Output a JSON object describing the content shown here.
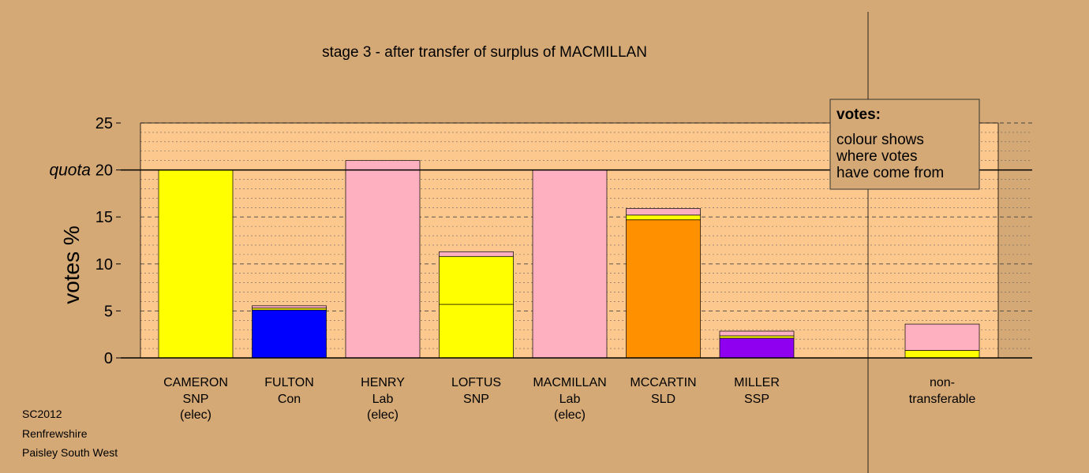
{
  "chart_data": {
    "type": "bar",
    "title": "stage 3 - after transfer of surplus of MACMILLAN",
    "ylabel": "votes %",
    "ylim": [
      0,
      25
    ],
    "yticks": [
      0,
      5,
      10,
      15,
      20,
      25
    ],
    "quota": {
      "value": 20,
      "label": "quota"
    },
    "grid": "dashed",
    "candidates": [
      {
        "name": "CAMERON",
        "party": "SNP",
        "status": "(elec)",
        "segments": [
          {
            "value": 20.0,
            "color": "#ffff00"
          }
        ]
      },
      {
        "name": "FULTON",
        "party": "Con",
        "status": "",
        "segments": [
          {
            "value": 5.1,
            "color": "#0000ff"
          },
          {
            "value": 0.2,
            "color": "#ffff00"
          },
          {
            "value": 0.25,
            "color": "#ffb0c0"
          }
        ]
      },
      {
        "name": "HENRY",
        "party": "Lab",
        "status": "(elec)",
        "segments": [
          {
            "value": 21.0,
            "color": "#ffb0c0"
          }
        ]
      },
      {
        "name": "LOFTUS",
        "party": "SNP",
        "status": "",
        "segments": [
          {
            "value": 5.7,
            "color": "#ffff00"
          },
          {
            "value": 5.1,
            "color": "#ffff00"
          },
          {
            "value": 0.5,
            "color": "#ffb0c0"
          }
        ]
      },
      {
        "name": "MACMILLAN",
        "party": "Lab",
        "status": "(elec)",
        "segments": [
          {
            "value": 20.0,
            "color": "#ffb0c0"
          }
        ]
      },
      {
        "name": "MCCARTIN",
        "party": "SLD",
        "status": "",
        "segments": [
          {
            "value": 14.7,
            "color": "#ff9000"
          },
          {
            "value": 0.5,
            "color": "#ffff00"
          },
          {
            "value": 0.7,
            "color": "#ffb0c0"
          }
        ]
      },
      {
        "name": "MILLER",
        "party": "SSP",
        "status": "",
        "segments": [
          {
            "value": 2.1,
            "color": "#9000f0"
          },
          {
            "value": 0.25,
            "color": "#ffff00"
          },
          {
            "value": 0.5,
            "color": "#ffb0c0"
          }
        ]
      }
    ],
    "nontransferable": {
      "label1": "non-",
      "label2": "transferable",
      "segments": [
        {
          "value": 0.8,
          "color": "#ffff00"
        },
        {
          "value": 2.8,
          "color": "#ffb0c0"
        }
      ]
    },
    "legend": {
      "title": "votes:",
      "lines": [
        "colour shows",
        "where votes",
        "have come from"
      ],
      "placement": "top-right"
    }
  },
  "footer": {
    "line1": "SC2012",
    "line2": "Renfrewshire",
    "line3": "Paisley South West"
  },
  "colors": {
    "background": "#d4a976",
    "plot_background": "#fcc88e"
  }
}
